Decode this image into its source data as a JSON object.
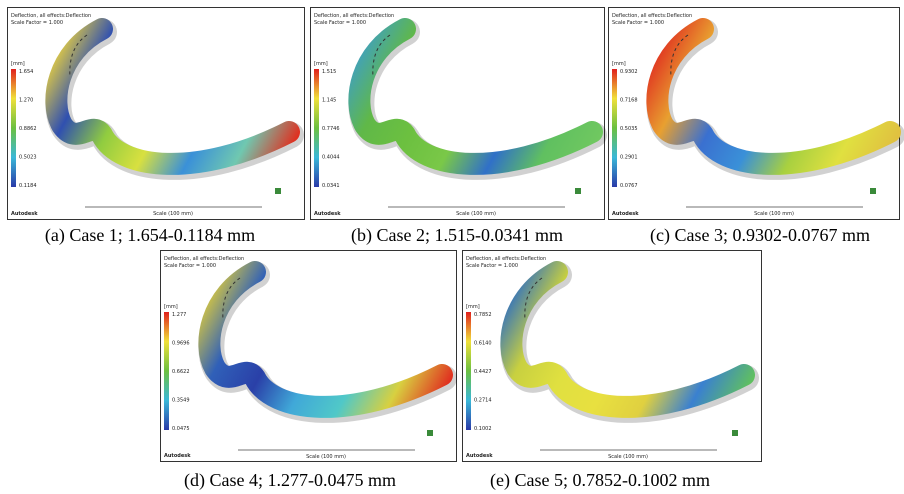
{
  "panels": [
    {
      "header": "Deflection, all effects:Deflection",
      "scale_factor": "Scale Factor = 1.000",
      "unit": "[mm]",
      "legend": [
        "1.654",
        "1.270",
        "0.8862",
        "0.5023",
        "0.1184"
      ],
      "scale_bar": "Scale (100 mm)",
      "brand": "Autodesk",
      "caption": "(a) Case 1; 1.654-0.1184 mm"
    },
    {
      "header": "Deflection, all effects:Deflection",
      "scale_factor": "Scale Factor = 1.000",
      "unit": "[mm]",
      "legend": [
        "1.515",
        "1.145",
        "0.7746",
        "0.4044",
        "0.0341"
      ],
      "scale_bar": "Scale (100 mm)",
      "brand": "Autodesk",
      "caption": "(b) Case 2; 1.515-0.0341 mm"
    },
    {
      "header": "Deflection, all effects:Deflection",
      "scale_factor": "Scale Factor = 1.000",
      "unit": "[mm]",
      "legend": [
        "0.9302",
        "0.7168",
        "0.5035",
        "0.2901",
        "0.0767"
      ],
      "scale_bar": "Scale (100 mm)",
      "brand": "Autodesk",
      "caption": "(c) Case 3; 0.9302-0.0767 mm"
    },
    {
      "header": "Deflection, all effects:Deflection",
      "scale_factor": "Scale Factor = 1.000",
      "unit": "[mm]",
      "legend": [
        "1.277",
        "0.9696",
        "0.6622",
        "0.3549",
        "0.0475"
      ],
      "scale_bar": "Scale (100 mm)",
      "brand": "Autodesk",
      "caption": "(d) Case 4; 1.277-0.0475 mm"
    },
    {
      "header": "Deflection, all effects:Deflection",
      "scale_factor": "Scale Factor = 1.000",
      "unit": "[mm]",
      "legend": [
        "0.7852",
        "0.6140",
        "0.4427",
        "0.2714",
        "0.1002"
      ],
      "scale_bar": "Scale (100 mm)",
      "brand": "Autodesk",
      "caption": "(e) Case 5; 0.7852-0.1002 mm"
    }
  ]
}
